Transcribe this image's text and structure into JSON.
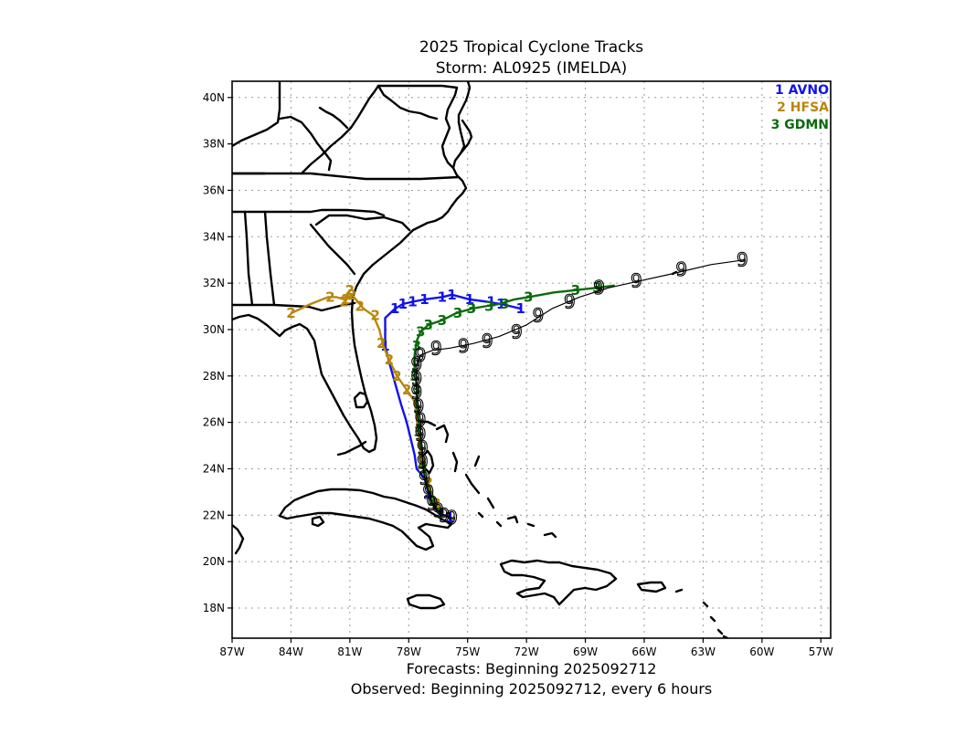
{
  "title_line1": "2025 Tropical Cyclone Tracks",
  "title_line2": "Storm: AL0925 (IMELDA)",
  "footer_line1": "Forecasts: Beginning 2025092712",
  "footer_line2": "Observed: Beginning 2025092712, every 6 hours",
  "legend": [
    {
      "num": "1",
      "name": "AVNO",
      "color": "#1111ee"
    },
    {
      "num": "2",
      "name": "HFSA",
      "color": "#b8860b"
    },
    {
      "num": "3",
      "name": "GDMN",
      "color": "#0a6b0a"
    }
  ],
  "map": {
    "lon_range": [
      -87,
      -56.5
    ],
    "lat_range": [
      16.7,
      40.7
    ],
    "lon_ticks": [
      {
        "v": -87,
        "label": "87W"
      },
      {
        "v": -84,
        "label": "84W"
      },
      {
        "v": -81,
        "label": "81W"
      },
      {
        "v": -78,
        "label": "78W"
      },
      {
        "v": -75,
        "label": "75W"
      },
      {
        "v": -72,
        "label": "72W"
      },
      {
        "v": -69,
        "label": "69W"
      },
      {
        "v": -66,
        "label": "66W"
      },
      {
        "v": -63,
        "label": "63W"
      },
      {
        "v": -60,
        "label": "60W"
      },
      {
        "v": -57,
        "label": "57W"
      }
    ],
    "lat_ticks": [
      {
        "v": 18,
        "label": "18N"
      },
      {
        "v": 20,
        "label": "20N"
      },
      {
        "v": 22,
        "label": "22N"
      },
      {
        "v": 24,
        "label": "24N"
      },
      {
        "v": 26,
        "label": "26N"
      },
      {
        "v": 28,
        "label": "28N"
      },
      {
        "v": 30,
        "label": "30N"
      },
      {
        "v": 32,
        "label": "32N"
      },
      {
        "v": 34,
        "label": "34N"
      },
      {
        "v": 36,
        "label": "36N"
      },
      {
        "v": 38,
        "label": "38N"
      },
      {
        "v": 40,
        "label": "40N"
      }
    ],
    "grid": true
  },
  "tracks": [
    {
      "name": "AVNO",
      "marker": "1",
      "color": "#1111ee",
      "points": [
        [
          -75.9,
          21.9
        ],
        [
          -76.5,
          22.1
        ],
        [
          -76.8,
          22.5
        ],
        [
          -77.0,
          23.0
        ],
        [
          -77.2,
          23.6
        ],
        [
          -77.6,
          24.0
        ],
        [
          -77.7,
          24.6
        ],
        [
          -77.9,
          25.3
        ],
        [
          -78.1,
          26.0
        ],
        [
          -78.4,
          26.8
        ],
        [
          -78.6,
          27.4
        ],
        [
          -78.8,
          28.0
        ],
        [
          -79.0,
          28.6
        ],
        [
          -79.2,
          29.3
        ],
        [
          -79.2,
          29.9
        ],
        [
          -79.2,
          30.5
        ],
        [
          -78.7,
          30.9
        ],
        [
          -78.3,
          31.1
        ],
        [
          -77.8,
          31.2
        ],
        [
          -77.2,
          31.3
        ],
        [
          -76.3,
          31.4
        ],
        [
          -75.8,
          31.5
        ],
        [
          -74.9,
          31.3
        ],
        [
          -74.0,
          31.2
        ],
        [
          -73.3,
          31.1
        ],
        [
          -72.8,
          31.0
        ],
        [
          -72.3,
          30.9
        ]
      ],
      "labels": [
        [
          -75.9,
          21.9
        ],
        [
          -77.0,
          23.0
        ],
        [
          -79.2,
          29.3
        ],
        [
          -78.7,
          30.9
        ],
        [
          -78.3,
          31.1
        ],
        [
          -77.8,
          31.2
        ],
        [
          -77.2,
          31.3
        ],
        [
          -76.3,
          31.4
        ],
        [
          -75.8,
          31.5
        ],
        [
          -74.9,
          31.3
        ],
        [
          -73.8,
          31.2
        ],
        [
          -73.3,
          31.1
        ],
        [
          -72.3,
          30.9
        ]
      ]
    },
    {
      "name": "HFSA",
      "marker": "2",
      "color": "#b8860b",
      "points": [
        [
          -76.2,
          22.1
        ],
        [
          -76.6,
          22.5
        ],
        [
          -76.9,
          23.1
        ],
        [
          -77.2,
          23.8
        ],
        [
          -77.4,
          24.6
        ],
        [
          -77.5,
          25.4
        ],
        [
          -77.6,
          26.2
        ],
        [
          -77.7,
          26.9
        ],
        [
          -78.1,
          27.4
        ],
        [
          -78.6,
          28.0
        ],
        [
          -79.0,
          28.7
        ],
        [
          -79.3,
          29.3
        ],
        [
          -79.5,
          30.0
        ],
        [
          -79.8,
          30.6
        ],
        [
          -80.3,
          30.9
        ],
        [
          -80.7,
          31.3
        ],
        [
          -80.9,
          31.5
        ],
        [
          -81.2,
          31.3
        ],
        [
          -81.0,
          31.7
        ],
        [
          -81.3,
          31.3
        ],
        [
          -81.7,
          31.4
        ],
        [
          -82.1,
          31.4
        ],
        [
          -83.0,
          31.1
        ],
        [
          -84.0,
          30.7
        ]
      ],
      "labels": [
        [
          -76.6,
          22.5
        ],
        [
          -77.0,
          23.4
        ],
        [
          -77.3,
          24.3
        ],
        [
          -78.1,
          27.4
        ],
        [
          -78.6,
          28.0
        ],
        [
          -79.0,
          28.7
        ],
        [
          -79.4,
          29.4
        ],
        [
          -79.7,
          30.6
        ],
        [
          -80.5,
          31.0
        ],
        [
          -80.9,
          31.5
        ],
        [
          -81.2,
          31.3
        ],
        [
          -81.0,
          31.7
        ],
        [
          -81.3,
          31.2
        ],
        [
          -82.0,
          31.4
        ],
        [
          -84.0,
          30.7
        ]
      ]
    },
    {
      "name": "GDMN",
      "marker": "3",
      "color": "#0a6b0a",
      "points": [
        [
          -76.4,
          22.1
        ],
        [
          -76.8,
          22.5
        ],
        [
          -77.0,
          23.1
        ],
        [
          -77.2,
          23.8
        ],
        [
          -77.3,
          24.5
        ],
        [
          -77.4,
          25.3
        ],
        [
          -77.5,
          26.1
        ],
        [
          -77.6,
          26.9
        ],
        [
          -77.6,
          27.6
        ],
        [
          -77.7,
          28.3
        ],
        [
          -77.7,
          28.9
        ],
        [
          -77.6,
          29.5
        ],
        [
          -77.4,
          29.9
        ],
        [
          -77.0,
          30.2
        ],
        [
          -76.3,
          30.4
        ],
        [
          -75.6,
          30.7
        ],
        [
          -74.8,
          30.9
        ],
        [
          -74.1,
          31.0
        ],
        [
          -73.4,
          31.1
        ],
        [
          -72.6,
          31.3
        ],
        [
          -71.9,
          31.4
        ],
        [
          -70.6,
          31.6
        ],
        [
          -69.5,
          31.7
        ],
        [
          -68.4,
          31.8
        ],
        [
          -67.5,
          31.9
        ]
      ],
      "labels": [
        [
          -76.4,
          22.1
        ],
        [
          -76.8,
          22.6
        ],
        [
          -77.3,
          24.0
        ],
        [
          -77.5,
          25.6
        ],
        [
          -77.6,
          27.4
        ],
        [
          -77.7,
          28.0
        ],
        [
          -77.6,
          29.3
        ],
        [
          -77.4,
          29.9
        ],
        [
          -77.0,
          30.2
        ],
        [
          -76.3,
          30.4
        ],
        [
          -75.5,
          30.7
        ],
        [
          -74.8,
          30.9
        ],
        [
          -73.9,
          31.0
        ],
        [
          -73.1,
          31.1
        ],
        [
          -71.9,
          31.4
        ],
        [
          -69.5,
          31.7
        ],
        [
          -68.4,
          31.8
        ]
      ]
    },
    {
      "name": "Observed",
      "marker": "9",
      "color": "#000000",
      "points": [
        [
          -75.8,
          21.9
        ],
        [
          -76.2,
          22.0
        ],
        [
          -76.5,
          22.2
        ],
        [
          -76.8,
          22.5
        ],
        [
          -77.0,
          23.0
        ],
        [
          -77.2,
          23.6
        ],
        [
          -77.3,
          24.3
        ],
        [
          -77.3,
          24.9
        ],
        [
          -77.4,
          25.5
        ],
        [
          -77.4,
          26.1
        ],
        [
          -77.5,
          26.7
        ],
        [
          -77.6,
          27.3
        ],
        [
          -77.6,
          27.9
        ],
        [
          -77.6,
          28.5
        ],
        [
          -77.4,
          28.9
        ],
        [
          -76.8,
          29.1
        ],
        [
          -75.9,
          29.2
        ],
        [
          -74.7,
          29.4
        ],
        [
          -73.4,
          29.7
        ],
        [
          -72.0,
          30.2
        ],
        [
          -70.7,
          30.9
        ],
        [
          -69.3,
          31.4
        ],
        [
          -67.8,
          31.8
        ],
        [
          -66.2,
          32.1
        ],
        [
          -64.6,
          32.4
        ],
        [
          -62.6,
          32.8
        ],
        [
          -60.9,
          33.0
        ]
      ],
      "labels": [
        [
          -75.8,
          21.9
        ],
        [
          -76.2,
          22.0
        ],
        [
          -76.5,
          22.2
        ],
        [
          -76.8,
          22.5
        ],
        [
          -77.0,
          23.0
        ],
        [
          -77.2,
          23.6
        ],
        [
          -77.3,
          24.3
        ],
        [
          -77.3,
          24.9
        ],
        [
          -77.4,
          25.5
        ],
        [
          -77.4,
          26.1
        ],
        [
          -77.5,
          26.7
        ],
        [
          -77.6,
          27.3
        ],
        [
          -77.6,
          27.9
        ],
        [
          -77.6,
          28.5
        ],
        [
          -77.4,
          28.9
        ],
        [
          -76.6,
          29.2
        ],
        [
          -75.2,
          29.3
        ],
        [
          -74.0,
          29.5
        ],
        [
          -72.5,
          29.9
        ],
        [
          -71.4,
          30.6
        ],
        [
          -69.8,
          31.2
        ],
        [
          -68.3,
          31.8
        ],
        [
          -66.4,
          32.1
        ],
        [
          -64.1,
          32.6
        ],
        [
          -61.0,
          33.0
        ]
      ]
    }
  ]
}
